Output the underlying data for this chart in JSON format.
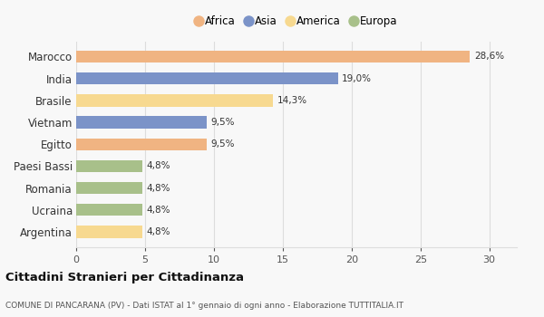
{
  "categories": [
    "Marocco",
    "India",
    "Brasile",
    "Vietnam",
    "Egitto",
    "Paesi Bassi",
    "Romania",
    "Ucraina",
    "Argentina"
  ],
  "values": [
    28.6,
    19.0,
    14.3,
    9.5,
    9.5,
    4.8,
    4.8,
    4.8,
    4.8
  ],
  "bar_colors": [
    "#f0b482",
    "#7b93c8",
    "#f7d990",
    "#7b93c8",
    "#f0b482",
    "#a8c08a",
    "#a8c08a",
    "#a8c08a",
    "#f7d990"
  ],
  "labels": [
    "28,6%",
    "19,0%",
    "14,3%",
    "9,5%",
    "9,5%",
    "4,8%",
    "4,8%",
    "4,8%",
    "4,8%"
  ],
  "legend_labels": [
    "Africa",
    "Asia",
    "America",
    "Europa"
  ],
  "legend_colors": [
    "#f0b482",
    "#7b93c8",
    "#f7d990",
    "#a8c08a"
  ],
  "xlim": [
    0,
    32
  ],
  "xticks": [
    0,
    5,
    10,
    15,
    20,
    25,
    30
  ],
  "title_main": "Cittadini Stranieri per Cittadinanza",
  "title_sub": "COMUNE DI PANCARANA (PV) - Dati ISTAT al 1° gennaio di ogni anno - Elaborazione TUTTITALIA.IT",
  "background_color": "#f8f8f8",
  "grid_color": "#dddddd",
  "bar_height": 0.55
}
